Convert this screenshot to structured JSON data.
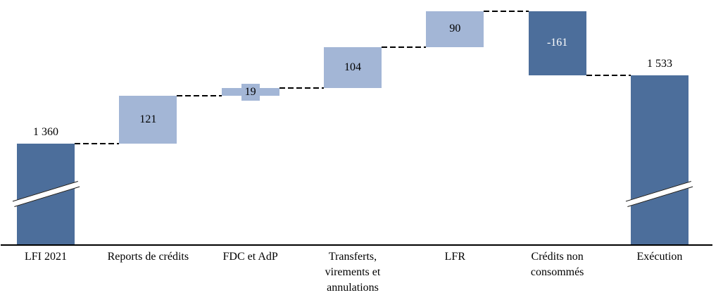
{
  "chart_data": {
    "type": "waterfall",
    "title": "",
    "xlabel": "",
    "ylabel": "",
    "gridlines": false,
    "legend": null,
    "axis_color": "#000000",
    "connector_style": "dashed",
    "colors": {
      "total_bar": "#4C6E9B",
      "delta_positive_bar": "#A3B6D6",
      "delta_negative_bar": "#4C6E9B",
      "label_on_light": "#000000",
      "label_on_dark": "#FFFFFF",
      "connector": "#000000"
    },
    "categories": [
      "LFI 2021",
      "Reports de crédits",
      "FDC et AdP",
      "Transferts,\nvirements et\nannulations",
      "LFR",
      "Crédits non\nconsommés",
      "Exécution"
    ],
    "bars": [
      {
        "id": "lfi-2021",
        "category": "LFI 2021",
        "value": 1360,
        "display": "1 360",
        "kind": "total",
        "axis_break": true,
        "label_position": "above"
      },
      {
        "id": "reports-de-credits",
        "category": "Reports de crédits",
        "value": 121,
        "display": "121",
        "kind": "delta",
        "axis_break": false,
        "label_position": "inside"
      },
      {
        "id": "fdc-et-adp",
        "category": "FDC et AdP",
        "value": 19,
        "display": "19",
        "kind": "delta",
        "axis_break": false,
        "label_position": "inside-boxed"
      },
      {
        "id": "transferts-virements-annulations",
        "category": "Transferts,\nvirements et\nannulations",
        "value": 104,
        "display": "104",
        "kind": "delta",
        "axis_break": false,
        "label_position": "inside"
      },
      {
        "id": "lfr",
        "category": "LFR",
        "value": 90,
        "display": "90",
        "kind": "delta",
        "axis_break": false,
        "label_position": "inside"
      },
      {
        "id": "credits-non-consommes",
        "category": "Crédits non\nconsommés",
        "value": -161,
        "display": "-161",
        "kind": "delta",
        "axis_break": false,
        "label_position": "inside"
      },
      {
        "id": "execution",
        "category": "Exécution",
        "value": 1533,
        "display": "1 533",
        "kind": "total",
        "axis_break": true,
        "label_position": "above"
      }
    ]
  }
}
